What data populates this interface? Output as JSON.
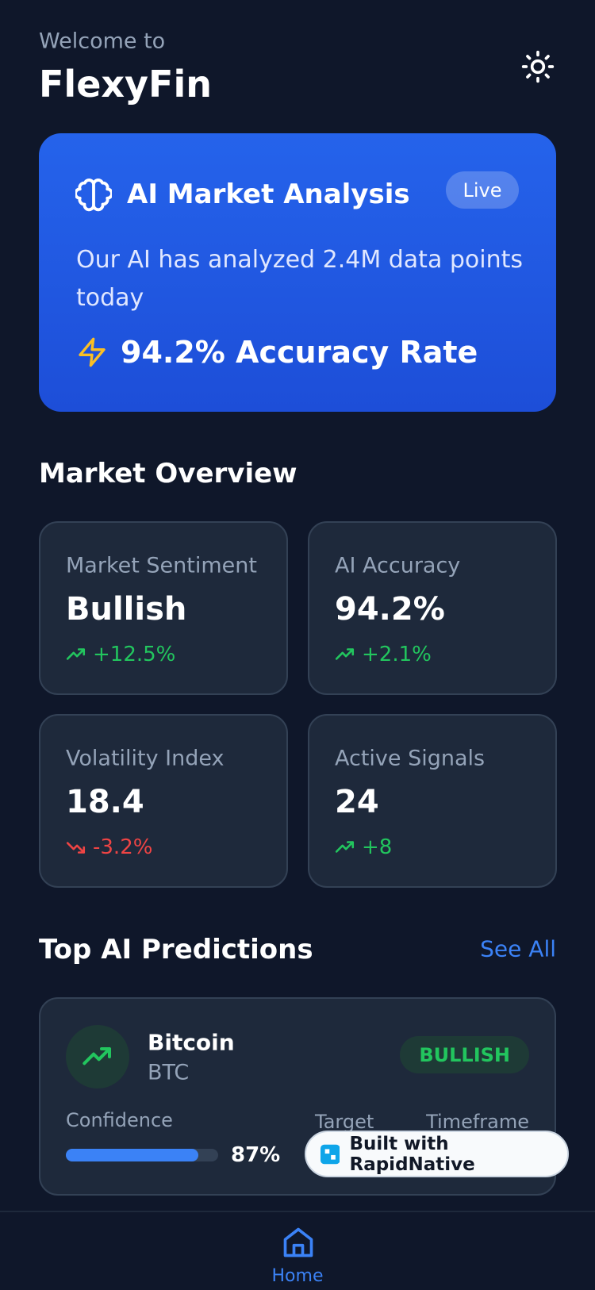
{
  "header": {
    "welcome": "Welcome to",
    "title": "FlexyFin"
  },
  "ai_card": {
    "title": "AI Market Analysis",
    "badge": "Live",
    "text": "Our AI has analyzed 2.4M data points today",
    "accuracy": "94.2% Accuracy Rate"
  },
  "market_overview": {
    "title": "Market Overview",
    "cards": [
      {
        "label": "Market Sentiment",
        "value": "Bullish",
        "change": "+12.5%",
        "trend": "up"
      },
      {
        "label": "AI Accuracy",
        "value": "94.2%",
        "change": "+2.1%",
        "trend": "up"
      },
      {
        "label": "Volatility Index",
        "value": "18.4",
        "change": "-3.2%",
        "trend": "down"
      },
      {
        "label": "Active Signals",
        "value": "24",
        "change": "+8",
        "trend": "up"
      }
    ]
  },
  "predictions": {
    "title": "Top AI Predictions",
    "see_all": "See All",
    "items": [
      {
        "name": "Bitcoin",
        "symbol": "BTC",
        "signal": "BULLISH",
        "confidence_label": "Confidence",
        "confidence": "87%",
        "target_label": "Target",
        "timeframe_label": "Timeframe"
      }
    ]
  },
  "badge": "Built with RapidNative",
  "nav": {
    "home": "Home"
  }
}
